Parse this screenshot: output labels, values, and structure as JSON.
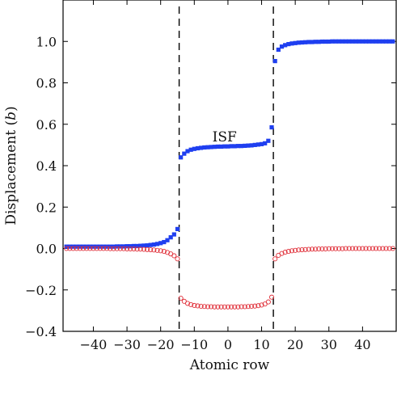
{
  "chart_data": {
    "type": "scatter",
    "xlabel": "Atomic row",
    "ylabel_main": "Displacement (",
    "ylabel_italic": "b",
    "ylabel_close": ")",
    "xlim": [
      -49,
      50
    ],
    "ylim": [
      -0.4,
      1.2
    ],
    "xticks": [
      -40,
      -30,
      -20,
      -10,
      0,
      10,
      20,
      30,
      40
    ],
    "xtick_labels": [
      "−40",
      "−30",
      "−20",
      "−10",
      "0",
      "10",
      "20",
      "30",
      "40"
    ],
    "yticks": [
      -0.4,
      -0.2,
      0.0,
      0.2,
      0.4,
      0.6,
      0.8,
      1.0
    ],
    "ytick_labels": [
      "−0.4",
      "−0.2",
      "0.0",
      "0.2",
      "0.4",
      "0.6",
      "0.8",
      "1.0"
    ],
    "dashed_lines_x": [
      -14.5,
      13.5
    ],
    "annotation": {
      "text": "ISF",
      "x": -1,
      "y": 0.54
    },
    "series": [
      {
        "marker": "filled-square",
        "color": "#1f3ff0",
        "points": [
          [
            -48,
            0.009
          ],
          [
            -47,
            0.009
          ],
          [
            -46,
            0.009
          ],
          [
            -45,
            0.009
          ],
          [
            -44,
            0.009
          ],
          [
            -43,
            0.009
          ],
          [
            -42,
            0.009
          ],
          [
            -41,
            0.009
          ],
          [
            -40,
            0.009
          ],
          [
            -39,
            0.009
          ],
          [
            -38,
            0.009
          ],
          [
            -37,
            0.009
          ],
          [
            -36,
            0.009
          ],
          [
            -35,
            0.009
          ],
          [
            -34,
            0.009
          ],
          [
            -33,
            0.01
          ],
          [
            -32,
            0.01
          ],
          [
            -31,
            0.01
          ],
          [
            -30,
            0.011
          ],
          [
            -29,
            0.011
          ],
          [
            -28,
            0.012
          ],
          [
            -27,
            0.012
          ],
          [
            -26,
            0.013
          ],
          [
            -25,
            0.014
          ],
          [
            -24,
            0.015
          ],
          [
            -23,
            0.017
          ],
          [
            -22,
            0.019
          ],
          [
            -21,
            0.022
          ],
          [
            -20,
            0.026
          ],
          [
            -19,
            0.031
          ],
          [
            -18,
            0.04
          ],
          [
            -17,
            0.054
          ],
          [
            -16,
            0.068
          ],
          [
            -15,
            0.094
          ],
          [
            -14,
            0.44
          ],
          [
            -13,
            0.458
          ],
          [
            -12,
            0.47
          ],
          [
            -11,
            0.477
          ],
          [
            -10,
            0.481
          ],
          [
            -9,
            0.484
          ],
          [
            -8,
            0.486
          ],
          [
            -7,
            0.488
          ],
          [
            -6,
            0.489
          ],
          [
            -5,
            0.49
          ],
          [
            -4,
            0.491
          ],
          [
            -3,
            0.492
          ],
          [
            -2,
            0.492
          ],
          [
            -1,
            0.493
          ],
          [
            0,
            0.493
          ],
          [
            1,
            0.494
          ],
          [
            2,
            0.494
          ],
          [
            3,
            0.495
          ],
          [
            4,
            0.495
          ],
          [
            5,
            0.496
          ],
          [
            6,
            0.497
          ],
          [
            7,
            0.498
          ],
          [
            8,
            0.5
          ],
          [
            9,
            0.502
          ],
          [
            10,
            0.504
          ],
          [
            11,
            0.508
          ],
          [
            12,
            0.52
          ],
          [
            13,
            0.585
          ],
          [
            14,
            0.905
          ],
          [
            15,
            0.96
          ],
          [
            16,
            0.975
          ],
          [
            17,
            0.982
          ],
          [
            18,
            0.987
          ],
          [
            19,
            0.99
          ],
          [
            20,
            0.992
          ],
          [
            21,
            0.994
          ],
          [
            22,
            0.995
          ],
          [
            23,
            0.996
          ],
          [
            24,
            0.997
          ],
          [
            25,
            0.997
          ],
          [
            26,
            0.998
          ],
          [
            27,
            0.998
          ],
          [
            28,
            0.999
          ],
          [
            29,
            0.999
          ],
          [
            30,
            0.999
          ],
          [
            31,
            1.0
          ],
          [
            32,
            1.0
          ],
          [
            33,
            1.0
          ],
          [
            34,
            1.0
          ],
          [
            35,
            1.0
          ],
          [
            36,
            1.0
          ],
          [
            37,
            1.0
          ],
          [
            38,
            1.0
          ],
          [
            39,
            1.0
          ],
          [
            40,
            1.0
          ],
          [
            41,
            1.0
          ],
          [
            42,
            1.0
          ],
          [
            43,
            1.0
          ],
          [
            44,
            1.0
          ],
          [
            45,
            1.0
          ],
          [
            46,
            1.0
          ],
          [
            47,
            1.0
          ],
          [
            48,
            1.0
          ],
          [
            49,
            1.0
          ]
        ]
      },
      {
        "marker": "open-circle",
        "color": "#e0303a",
        "points": [
          [
            -48,
            0.0
          ],
          [
            -47,
            0.0
          ],
          [
            -46,
            0.0
          ],
          [
            -45,
            0.0
          ],
          [
            -44,
            0.0
          ],
          [
            -43,
            0.0
          ],
          [
            -42,
            0.0
          ],
          [
            -41,
            0.0
          ],
          [
            -40,
            0.0
          ],
          [
            -39,
            0.0
          ],
          [
            -38,
            0.0
          ],
          [
            -37,
            0.0
          ],
          [
            -36,
            0.0
          ],
          [
            -35,
            -0.001
          ],
          [
            -34,
            -0.001
          ],
          [
            -33,
            -0.001
          ],
          [
            -32,
            -0.001
          ],
          [
            -31,
            -0.001
          ],
          [
            -30,
            -0.002
          ],
          [
            -29,
            -0.002
          ],
          [
            -28,
            -0.002
          ],
          [
            -27,
            -0.003
          ],
          [
            -26,
            -0.003
          ],
          [
            -25,
            -0.004
          ],
          [
            -24,
            -0.005
          ],
          [
            -23,
            -0.006
          ],
          [
            -22,
            -0.007
          ],
          [
            -21,
            -0.009
          ],
          [
            -20,
            -0.011
          ],
          [
            -19,
            -0.014
          ],
          [
            -18,
            -0.019
          ],
          [
            -17,
            -0.026
          ],
          [
            -16,
            -0.035
          ],
          [
            -15,
            -0.05
          ],
          [
            -14,
            -0.24
          ],
          [
            -13,
            -0.255
          ],
          [
            -12,
            -0.265
          ],
          [
            -11,
            -0.271
          ],
          [
            -10,
            -0.275
          ],
          [
            -9,
            -0.277
          ],
          [
            -8,
            -0.279
          ],
          [
            -7,
            -0.28
          ],
          [
            -6,
            -0.281
          ],
          [
            -5,
            -0.281
          ],
          [
            -4,
            -0.282
          ],
          [
            -3,
            -0.282
          ],
          [
            -2,
            -0.282
          ],
          [
            -1,
            -0.282
          ],
          [
            0,
            -0.282
          ],
          [
            1,
            -0.282
          ],
          [
            2,
            -0.282
          ],
          [
            3,
            -0.282
          ],
          [
            4,
            -0.281
          ],
          [
            5,
            -0.281
          ],
          [
            6,
            -0.28
          ],
          [
            7,
            -0.279
          ],
          [
            8,
            -0.278
          ],
          [
            9,
            -0.276
          ],
          [
            10,
            -0.273
          ],
          [
            11,
            -0.268
          ],
          [
            12,
            -0.258
          ],
          [
            13,
            -0.235
          ],
          [
            14,
            -0.05
          ],
          [
            15,
            -0.033
          ],
          [
            16,
            -0.024
          ],
          [
            17,
            -0.018
          ],
          [
            18,
            -0.014
          ],
          [
            19,
            -0.011
          ],
          [
            20,
            -0.009
          ],
          [
            21,
            -0.007
          ],
          [
            22,
            -0.006
          ],
          [
            23,
            -0.005
          ],
          [
            24,
            -0.004
          ],
          [
            25,
            -0.003
          ],
          [
            26,
            -0.003
          ],
          [
            27,
            -0.002
          ],
          [
            28,
            -0.002
          ],
          [
            29,
            -0.002
          ],
          [
            30,
            -0.001
          ],
          [
            31,
            -0.001
          ],
          [
            32,
            -0.001
          ],
          [
            33,
            -0.001
          ],
          [
            34,
            -0.001
          ],
          [
            35,
            0.0
          ],
          [
            36,
            0.0
          ],
          [
            37,
            0.0
          ],
          [
            38,
            0.0
          ],
          [
            39,
            0.0
          ],
          [
            40,
            0.0
          ],
          [
            41,
            0.0
          ],
          [
            42,
            0.0
          ],
          [
            43,
            0.0
          ],
          [
            44,
            0.0
          ],
          [
            45,
            0.0
          ],
          [
            46,
            0.0
          ],
          [
            47,
            0.0
          ],
          [
            48,
            0.0
          ],
          [
            49,
            0.0
          ]
        ]
      }
    ]
  }
}
